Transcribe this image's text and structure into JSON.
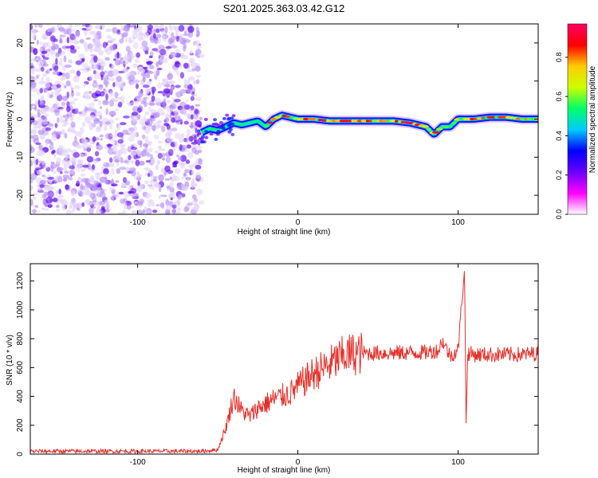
{
  "title": "S201.2025.363.03.42.G12",
  "chart_data": [
    {
      "type": "heatmap",
      "xlabel": "Height of straight line (km)",
      "ylabel": "Frequency (Hz)",
      "xlim": [
        -167,
        150
      ],
      "ylim": [
        -25,
        25
      ],
      "xticks": [
        -100,
        0,
        100
      ],
      "yticks": [
        -20,
        -10,
        0,
        10,
        20
      ],
      "colorbar": {
        "label": "Normalized spectral amplitude",
        "range": [
          0,
          0.97
        ],
        "ticks": [
          0.0,
          0.2,
          0.4,
          0.6,
          0.8
        ],
        "colormap": [
          "#ffffff",
          "#ff00ff",
          "#6a00ff",
          "#0000ff",
          "#00ccff",
          "#00ff66",
          "#ccff00",
          "#ffcc00",
          "#ff0000",
          "#ff0066"
        ]
      },
      "noise_region_x": [
        -167,
        -60
      ],
      "ridge": {
        "x": [
          -60,
          -55,
          -50,
          -45,
          -40,
          -35,
          -30,
          -25,
          -20,
          -15,
          -10,
          -5,
          0,
          10,
          20,
          30,
          40,
          50,
          60,
          70,
          75,
          80,
          85,
          90,
          95,
          100,
          110,
          120,
          130,
          140,
          150
        ],
        "freq": [
          -3.5,
          -2.5,
          -3,
          -2,
          -1,
          -1.5,
          -1,
          -0.5,
          -2,
          0,
          1,
          0.5,
          0,
          0,
          -0.5,
          -0.5,
          -0.5,
          -0.5,
          -0.5,
          -1,
          -1.5,
          -2,
          -4,
          -2,
          -2,
          0,
          0,
          0.5,
          0.5,
          0,
          0
        ]
      }
    },
    {
      "type": "line",
      "xlabel": "Height of straight line (km)",
      "ylabel": "SNR (10 * v/v)",
      "xlim": [
        -167,
        150
      ],
      "ylim": [
        0,
        1320
      ],
      "xticks": [
        -100,
        0,
        100
      ],
      "yticks": [
        0,
        200,
        400,
        600,
        800,
        1000,
        1200
      ],
      "color": "#e8302a",
      "series": [
        {
          "x": [
            -167,
            -60,
            -50,
            -45,
            -40,
            -35,
            -30,
            -25,
            -20,
            -15,
            -10,
            -5,
            0,
            10,
            20,
            30,
            40,
            60,
            80,
            88,
            90,
            95,
            100,
            104,
            105,
            106,
            110,
            120,
            140,
            150
          ],
          "values": [
            20,
            20,
            30,
            180,
            400,
            300,
            260,
            320,
            350,
            380,
            400,
            420,
            470,
            560,
            620,
            690,
            700,
            700,
            705,
            720,
            790,
            680,
            720,
            1300,
            180,
            700,
            690,
            690,
            690,
            700
          ]
        }
      ]
    }
  ]
}
